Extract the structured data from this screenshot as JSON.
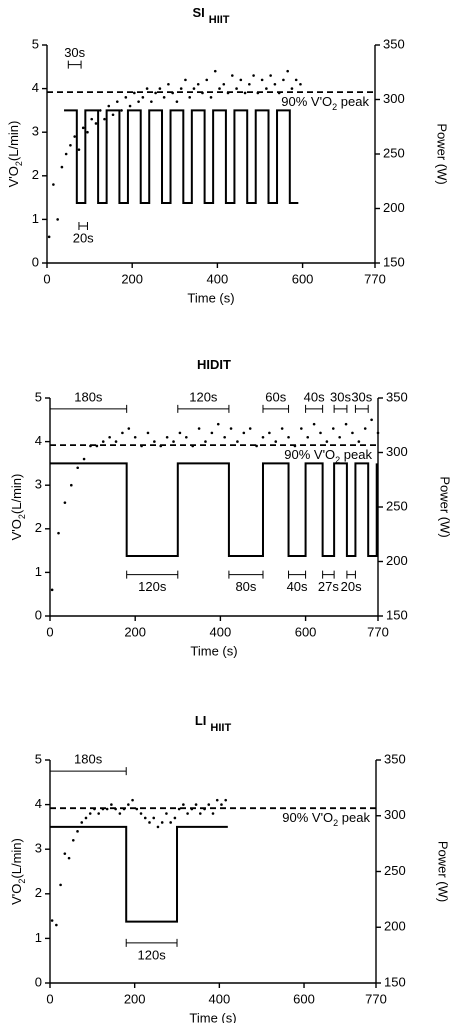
{
  "chart_data": [
    {
      "type": "combo",
      "title": "SI",
      "title_sub": "HIIT",
      "ylabel_parts": [
        "V'O",
        "2",
        "(L/min)"
      ],
      "y2label": "Power (W)",
      "xlabel": "Time (s)",
      "xlim": [
        0,
        770
      ],
      "xticks": [
        0,
        200,
        400,
        600,
        770
      ],
      "ylim": [
        0,
        5
      ],
      "yticks": [
        0,
        1,
        2,
        3,
        4,
        5
      ],
      "y2lim": [
        150,
        350
      ],
      "y2ticks": [
        150,
        200,
        250,
        300,
        350
      ],
      "series": [
        {
          "type": "scatter",
          "color": "#000000",
          "x": [
            5,
            15,
            25,
            35,
            45,
            55,
            65,
            75,
            85,
            95,
            105,
            115,
            125,
            135,
            145,
            155,
            165,
            175,
            185,
            195,
            205,
            215,
            225,
            235,
            245,
            255,
            265,
            275,
            285,
            295,
            305,
            315,
            325,
            335,
            345,
            355,
            365,
            375,
            385,
            395,
            405,
            415,
            425,
            435,
            445,
            455,
            465,
            475,
            485,
            495,
            505,
            515,
            525,
            535,
            545,
            555,
            565,
            575,
            585,
            595
          ],
          "values": [
            0.6,
            1.8,
            1.0,
            2.2,
            2.5,
            2.7,
            2.9,
            2.6,
            3.1,
            3.0,
            3.3,
            3.2,
            3.5,
            3.3,
            3.6,
            3.4,
            3.7,
            3.5,
            3.8,
            3.6,
            3.9,
            3.7,
            3.8,
            4.0,
            3.7,
            3.9,
            4.0,
            3.8,
            4.1,
            3.9,
            3.7,
            4.0,
            4.2,
            3.8,
            4.0,
            4.1,
            3.9,
            4.2,
            3.8,
            4.4,
            4.0,
            4.1,
            3.9,
            4.3,
            4.0,
            4.2,
            3.9,
            4.1,
            4.3,
            3.9,
            4.2,
            4.0,
            4.3,
            4.1,
            3.9,
            4.2,
            4.4,
            4.0,
            4.2,
            4.1
          ]
        },
        {
          "type": "line",
          "axis": "y2",
          "color": "#000000",
          "x": [
            40,
            70,
            70,
            90,
            90,
            120,
            120,
            140,
            140,
            170,
            170,
            190,
            190,
            220,
            220,
            240,
            240,
            270,
            270,
            290,
            290,
            320,
            320,
            340,
            340,
            370,
            370,
            390,
            390,
            420,
            420,
            440,
            440,
            470,
            470,
            490,
            490,
            520,
            520,
            540,
            540,
            570,
            570,
            590
          ],
          "values": [
            290,
            290,
            205,
            205,
            290,
            290,
            205,
            205,
            290,
            290,
            205,
            205,
            290,
            290,
            205,
            205,
            290,
            290,
            205,
            205,
            290,
            290,
            205,
            205,
            290,
            290,
            205,
            205,
            290,
            290,
            205,
            205,
            290,
            290,
            205,
            205,
            290,
            290,
            205,
            205,
            290,
            290,
            205,
            205
          ]
        }
      ],
      "hline": {
        "value": 3.92,
        "label_parts": [
          "90% V'O",
          "2",
          " peak"
        ]
      },
      "annotations": [
        {
          "label": "30s",
          "x": [
            50,
            80
          ],
          "y": 4.55
        },
        {
          "label": "20s",
          "x": [
            75,
            95
          ],
          "y": 0.85
        }
      ]
    },
    {
      "type": "combo",
      "title": "HIDIT",
      "ylabel_parts": [
        "V'O",
        "2",
        "(L/min)"
      ],
      "y2label": "Power (W)",
      "xlabel": "Time (s)",
      "xlim": [
        0,
        770
      ],
      "xticks": [
        0,
        200,
        400,
        600,
        770
      ],
      "ylim": [
        0,
        5
      ],
      "yticks": [
        0,
        1,
        2,
        3,
        4,
        5
      ],
      "y2lim": [
        150,
        350
      ],
      "y2ticks": [
        150,
        200,
        250,
        300,
        350
      ],
      "series": [
        {
          "type": "scatter",
          "color": "#000000",
          "x": [
            5,
            20,
            35,
            50,
            65,
            80,
            95,
            110,
            125,
            140,
            155,
            170,
            185,
            200,
            215,
            230,
            245,
            260,
            275,
            290,
            305,
            320,
            335,
            350,
            365,
            380,
            395,
            410,
            425,
            440,
            455,
            470,
            485,
            500,
            515,
            530,
            545,
            560,
            575,
            590,
            605,
            620,
            635,
            650,
            665,
            680,
            695,
            710,
            725,
            740,
            755,
            770
          ],
          "values": [
            0.6,
            1.9,
            2.6,
            3.0,
            3.4,
            3.6,
            3.9,
            3.9,
            4.0,
            4.1,
            4.0,
            4.2,
            4.3,
            4.1,
            3.9,
            4.2,
            4.0,
            3.9,
            4.1,
            4.0,
            4.2,
            4.1,
            3.9,
            4.3,
            4.0,
            4.2,
            4.4,
            4.1,
            4.3,
            4.0,
            4.2,
            4.3,
            3.9,
            4.1,
            4.2,
            4.0,
            4.3,
            4.1,
            3.9,
            4.3,
            4.1,
            4.4,
            4.2,
            4.0,
            4.3,
            4.1,
            4.4,
            4.2,
            4.0,
            4.3,
            4.5,
            4.2
          ]
        },
        {
          "type": "line",
          "axis": "y2",
          "color": "#000000",
          "x": [
            0,
            180,
            180,
            300,
            300,
            420,
            420,
            500,
            500,
            560,
            560,
            600,
            600,
            640,
            640,
            667,
            667,
            697,
            697,
            717,
            717,
            747,
            747,
            767,
            767
          ],
          "values": [
            290,
            290,
            205,
            205,
            290,
            290,
            205,
            205,
            290,
            290,
            205,
            205,
            290,
            290,
            205,
            205,
            290,
            290,
            205,
            205,
            290,
            290,
            205,
            205,
            290
          ]
        }
      ],
      "hline": {
        "value": 3.92,
        "label_parts": [
          "90% V'O",
          "2",
          " peak"
        ]
      },
      "annotations": [
        {
          "label": "180s",
          "x": [
            0,
            180
          ],
          "y": 4.75
        },
        {
          "label": "120s",
          "x": [
            300,
            420
          ],
          "y": 4.75
        },
        {
          "label": "60s",
          "x": [
            500,
            560
          ],
          "y": 4.75
        },
        {
          "label": "40s",
          "x": [
            600,
            640
          ],
          "y": 4.75
        },
        {
          "label": "30s",
          "x": [
            667,
            697
          ],
          "y": 4.75
        },
        {
          "label": "30s",
          "x": [
            717,
            747
          ],
          "y": 4.75
        },
        {
          "label": "120s",
          "x": [
            180,
            300
          ],
          "y": 0.95
        },
        {
          "label": "80s",
          "x": [
            420,
            500
          ],
          "y": 0.95
        },
        {
          "label": "40s",
          "x": [
            560,
            600
          ],
          "y": 0.95
        },
        {
          "label": "27s",
          "x": [
            640,
            667
          ],
          "y": 0.95
        },
        {
          "label": "20s",
          "x": [
            697,
            717
          ],
          "y": 0.95
        }
      ]
    },
    {
      "type": "combo",
      "title": "LI",
      "title_sub": "HIIT",
      "ylabel_parts": [
        "V'O",
        "2",
        "(L/min)"
      ],
      "y2label": "Power (W)",
      "xlabel": "Time (s)",
      "xlim": [
        0,
        770
      ],
      "xticks": [
        0,
        200,
        400,
        600,
        770
      ],
      "ylim": [
        0,
        5
      ],
      "yticks": [
        0,
        1,
        2,
        3,
        4,
        5
      ],
      "y2lim": [
        150,
        350
      ],
      "y2ticks": [
        150,
        200,
        250,
        300,
        350
      ],
      "series": [
        {
          "type": "scatter",
          "color": "#000000",
          "x": [
            5,
            15,
            25,
            35,
            45,
            55,
            65,
            75,
            85,
            95,
            105,
            115,
            125,
            135,
            145,
            155,
            165,
            175,
            185,
            195,
            205,
            215,
            225,
            235,
            245,
            255,
            265,
            275,
            285,
            295,
            305,
            315,
            325,
            335,
            345,
            355,
            365,
            375,
            385,
            395,
            405,
            415
          ],
          "values": [
            1.4,
            1.3,
            2.2,
            2.9,
            2.8,
            3.2,
            3.4,
            3.6,
            3.7,
            3.8,
            3.9,
            3.8,
            3.9,
            3.9,
            4.0,
            3.9,
            3.8,
            3.9,
            4.0,
            4.1,
            3.9,
            3.8,
            3.7,
            3.6,
            3.7,
            3.5,
            3.6,
            3.8,
            3.6,
            3.7,
            3.9,
            4.0,
            3.8,
            3.9,
            4.0,
            3.8,
            3.9,
            4.0,
            3.8,
            4.1,
            4.0,
            4.1
          ]
        },
        {
          "type": "line",
          "axis": "y2",
          "color": "#000000",
          "x": [
            0,
            180,
            180,
            300,
            300,
            420
          ],
          "values": [
            290,
            290,
            205,
            205,
            290,
            290
          ]
        }
      ],
      "hline": {
        "value": 3.92,
        "label_parts": [
          "90% V'O",
          "2",
          " peak"
        ]
      },
      "annotations": [
        {
          "label": "180s",
          "x": [
            0,
            180
          ],
          "y": 4.75
        },
        {
          "label": "120s",
          "x": [
            180,
            300
          ],
          "y": 0.9
        }
      ]
    }
  ]
}
